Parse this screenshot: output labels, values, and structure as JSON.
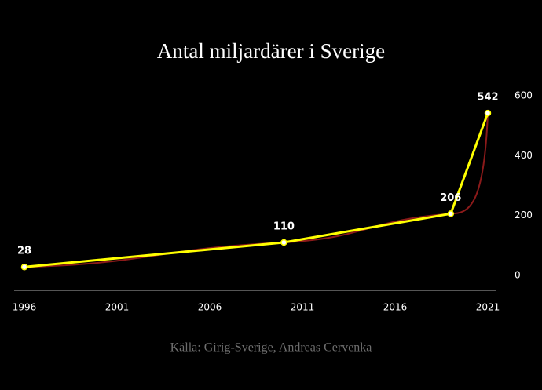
{
  "chart_data": {
    "type": "line",
    "title": "Antal miljardärer i Sverige",
    "source": "Källa: Girig-Sverige, Andreas Cervenka",
    "x": [
      1996,
      2010,
      2019,
      2021
    ],
    "series": [
      {
        "color": "#ffff00",
        "values": [
          28,
          110,
          206,
          542
        ]
      }
    ],
    "trend_color": "#8b1a1a",
    "xlim": [
      1996,
      2021
    ],
    "xticks": [
      1996,
      2001,
      2006,
      2011,
      2016,
      2021
    ],
    "ylim": [
      -50,
      600
    ],
    "yticks": [
      0,
      200,
      400,
      600
    ]
  }
}
